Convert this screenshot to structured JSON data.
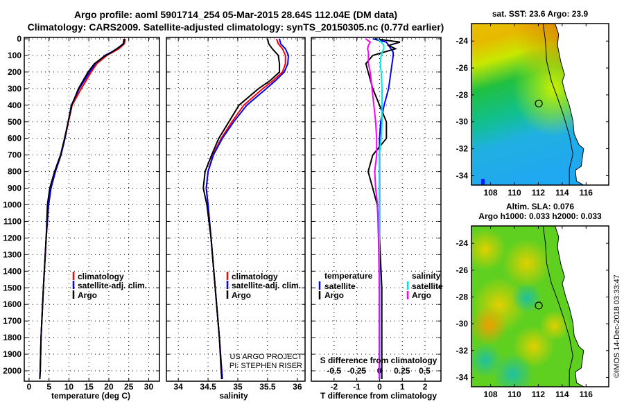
{
  "title_line1": "Argo profile: aoml 5901714_254 05-Mar-2015 28.64S 112.04E (DM data)",
  "title_line2": "Climatology: CARS2009. Satellite-adjusted climatology: synTS_20150305.nc (0.77d earlier)",
  "credit": "©IMOS 14-Dec-2018 03:33:47",
  "colors": {
    "climatology": "#ff0000",
    "satellite": "#0000ff",
    "argo": "#000000",
    "s_satellite": "#00e5e5",
    "s_argo": "#ff00ff"
  },
  "chart_data": [
    {
      "type": "line",
      "name": "temperature",
      "xlabel": "temperature (deg C)",
      "ylabel": "",
      "xlim": [
        -1.2,
        32.7
      ],
      "ylim": [
        2050,
        -5
      ],
      "xticks": [
        0,
        5,
        10,
        15,
        20,
        25,
        30
      ],
      "yticks": [
        0,
        100,
        200,
        300,
        400,
        500,
        600,
        700,
        800,
        900,
        1000,
        1100,
        1200,
        1300,
        1400,
        1500,
        1600,
        1700,
        1800,
        1900,
        2000
      ],
      "legend": [
        "climatology",
        "satellite-adj. clim.",
        "Argo"
      ],
      "depth": [
        0,
        30,
        60,
        80,
        100,
        150,
        200,
        300,
        400,
        500,
        600,
        700,
        800,
        900,
        1000,
        1200,
        1500,
        1800,
        2000,
        2050
      ],
      "series": [
        {
          "name": "climatology",
          "values": [
            24.1,
            23.9,
            22.5,
            21.0,
            19.5,
            17.0,
            15.6,
            13.1,
            10.8,
            9.9,
            9.0,
            8.0,
            6.6,
            5.5,
            4.9,
            4.3,
            3.6,
            3.0,
            2.8,
            2.7
          ]
        },
        {
          "name": "satellite-adj. clim.",
          "values": [
            23.8,
            23.6,
            22.0,
            20.6,
            19.0,
            16.6,
            15.2,
            12.6,
            10.6,
            9.8,
            9.0,
            8.0,
            6.6,
            5.5,
            4.9,
            4.3,
            3.6,
            3.0,
            2.8,
            2.7
          ]
        },
        {
          "name": "Argo",
          "values": [
            23.9,
            23.7,
            22.0,
            20.8,
            19.2,
            16.4,
            14.8,
            12.4,
            10.7,
            9.8,
            8.9,
            7.9,
            6.4,
            5.2,
            4.6,
            4.3,
            3.6,
            3.0,
            2.8,
            2.7
          ]
        }
      ]
    },
    {
      "type": "line",
      "name": "salinity",
      "xlabel": "salinity",
      "xlim": [
        33.8,
        36.13
      ],
      "ylim": [
        2050,
        -5
      ],
      "xticks": [
        34,
        34.5,
        35,
        35.5,
        36
      ],
      "xtick_labels": [
        "34",
        "34.5",
        "35",
        "35.5",
        "36"
      ],
      "legend": [
        "climatology",
        "satellite-adj. clim.",
        "Argo"
      ],
      "annotation": [
        "US ARGO PROJECT",
        "PI: STEPHEN RISER"
      ],
      "depth": [
        0,
        30,
        60,
        100,
        150,
        200,
        250,
        300,
        400,
        500,
        600,
        700,
        800,
        900,
        1000,
        1200,
        1500,
        1800,
        2000,
        2050
      ],
      "series": [
        {
          "name": "climatology",
          "values": [
            35.65,
            35.68,
            35.75,
            35.8,
            35.8,
            35.75,
            35.6,
            35.42,
            35.1,
            34.9,
            34.72,
            34.58,
            34.5,
            34.47,
            34.5,
            34.55,
            34.62,
            34.69,
            34.73,
            34.74
          ]
        },
        {
          "name": "satellite-adj. clim.",
          "values": [
            35.7,
            35.72,
            35.8,
            35.85,
            35.84,
            35.78,
            35.64,
            35.48,
            35.15,
            34.93,
            34.74,
            34.59,
            34.5,
            34.47,
            34.5,
            34.55,
            34.62,
            34.69,
            34.73,
            34.74
          ]
        },
        {
          "name": "Argo",
          "values": [
            35.5,
            35.52,
            35.58,
            35.68,
            35.7,
            35.7,
            35.55,
            35.35,
            35.02,
            34.85,
            34.68,
            34.56,
            34.45,
            34.42,
            34.48,
            34.55,
            34.62,
            34.69,
            34.72,
            34.73
          ]
        }
      ]
    },
    {
      "type": "line",
      "name": "difference",
      "xlabel": "T difference from climatology",
      "xlabel_s": "S difference from climatology",
      "xlim": [
        -3.0,
        2.7
      ],
      "xticks": [
        -2,
        -1,
        0,
        1,
        2
      ],
      "s_xlim": [
        -0.75,
        0.68
      ],
      "s_xticks": [
        -0.5,
        -0.25,
        0,
        0.25,
        0.5
      ],
      "s_xtick_labels": [
        "-0.5",
        "-0.25",
        "0",
        "0.25",
        "0.5"
      ],
      "legend_t_title": "temperature",
      "legend_s_title": "salinity",
      "legend": {
        "t_sat": "satellite",
        "t_argo": "Argo",
        "s_sat": "satellite",
        "s_argo": "Argo"
      },
      "depth": [
        0,
        20,
        40,
        60,
        80,
        100,
        150,
        200,
        300,
        400,
        500,
        600,
        700,
        800,
        900,
        1000,
        1200,
        1500,
        1800,
        2000,
        2050
      ],
      "series": [
        {
          "name": "T satellite",
          "values": [
            -0.3,
            0.3,
            0.4,
            0.5,
            0.6,
            0.6,
            0.55,
            0.5,
            0.4,
            0.2,
            0.05,
            0.0,
            0.0,
            0.0,
            0.0,
            0.0,
            0.0,
            0.0,
            0.0,
            0.0,
            0.0
          ]
        },
        {
          "name": "T Argo",
          "values": [
            -0.2,
            0.9,
            0.4,
            0.7,
            0.2,
            -0.3,
            -0.6,
            -0.5,
            -0.3,
            0.0,
            0.3,
            0.3,
            -0.3,
            -0.5,
            -0.3,
            -0.1,
            0.0,
            0.1,
            0.1,
            0.1,
            0.1
          ]
        },
        {
          "name": "S satellite",
          "values": [
            -0.02,
            0.02,
            0.05,
            0.05,
            0.03,
            0.02,
            0.01,
            0.02,
            0.03,
            0.03,
            0.03,
            0.02,
            0.0,
            0.0,
            0.0,
            0.0,
            0.0,
            0.0,
            0.0,
            0.0,
            0.0
          ]
        },
        {
          "name": "S Argo",
          "values": [
            -0.15,
            -0.1,
            -0.12,
            -0.13,
            -0.12,
            -0.12,
            -0.12,
            -0.1,
            -0.08,
            -0.06,
            -0.04,
            -0.03,
            -0.03,
            -0.05,
            -0.04,
            -0.02,
            -0.01,
            0.0,
            0.0,
            0.0,
            0.0
          ]
        }
      ]
    },
    {
      "type": "heatmap",
      "name": "sst-map",
      "title": "sat. SST: 23.6 Argo: 23.9",
      "xlim": [
        106.4,
        117.9
      ],
      "ylim": [
        -34.7,
        -22.7
      ],
      "xticks": [
        108,
        110,
        112,
        114,
        116
      ],
      "yticks": [
        -24,
        -26,
        -28,
        -30,
        -32,
        -34
      ],
      "argo_position": [
        112.04,
        -28.64
      ]
    },
    {
      "type": "heatmap",
      "name": "sla-map",
      "title_line1": "Altim. SLA: 0.076",
      "title_line2": "Argo h1000: 0.033 h2000: 0.033",
      "xlim": [
        106.4,
        117.9
      ],
      "ylim": [
        -34.7,
        -22.7
      ],
      "xticks": [
        108,
        110,
        112,
        114,
        116
      ],
      "yticks": [
        -24,
        -26,
        -28,
        -30,
        -32,
        -34
      ],
      "argo_position": [
        112.04,
        -28.64
      ]
    }
  ]
}
